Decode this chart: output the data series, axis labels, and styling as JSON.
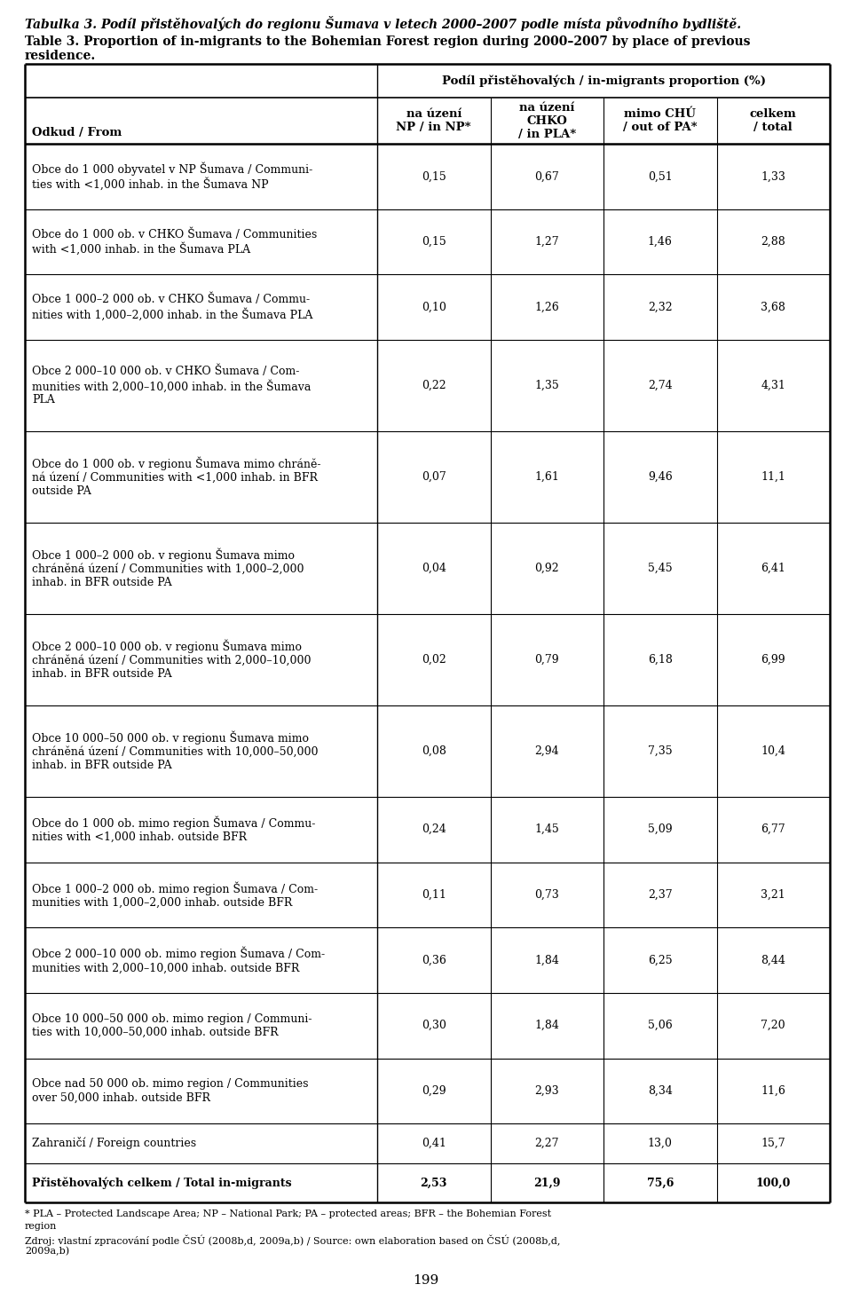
{
  "title_cz": "Tabulka 3. Podíl přistěhovalých do regionu Šumava v letech 2000–2007 podle místa původního bydliště.",
  "title_en": "Table 3. Proportion of in-migrants to the Bohemian Forest region during 2000–2007 by place of previous residence.",
  "col_header_left": "Odkud / From",
  "col_header_group": "Podíl přistěhovalých / in-migrants proportion (%)",
  "col_headers": [
    "na úzení\nNP / in NP*",
    "na úzení\nCHKO\n/ in PLA*",
    "mimo CHÚ\n/ out of PA*",
    "celkem\n/ total"
  ],
  "rows": [
    {
      "label": "Obce do 1 000 obyvatel v NP Šumava / Communi-\nties with <1,000 inhab. in the Šumava NP",
      "values": [
        "0,15",
        "0,67",
        "0,51",
        "1,33"
      ],
      "nlines": 2
    },
    {
      "label": "Obce do 1 000 ob. v CHKO Šumava / Communities\nwith <1,000 inhab. in the Šumava PLA",
      "values": [
        "0,15",
        "1,27",
        "1,46",
        "2,88"
      ],
      "nlines": 2
    },
    {
      "label": "Obce 1 000–2 000 ob. v CHKO Šumava / Commu-\nnities with 1,000–2,000 inhab. in the Šumava PLA",
      "values": [
        "0,10",
        "1,26",
        "2,32",
        "3,68"
      ],
      "nlines": 2
    },
    {
      "label": "Obce 2 000–10 000 ob. v CHKO Šumava / Com-\nmunities with 2,000–10,000 inhab. in the Šumava\nPLA",
      "values": [
        "0,22",
        "1,35",
        "2,74",
        "4,31"
      ],
      "nlines": 3
    },
    {
      "label": "Obce do 1 000 ob. v regionu Šumava mimo chráně-\nná úzení / Communities with <1,000 inhab. in BFR\noutside PA",
      "values": [
        "0,07",
        "1,61",
        "9,46",
        "11,1"
      ],
      "nlines": 3
    },
    {
      "label": "Obce 1 000–2 000 ob. v regionu Šumava mimo\nchráněná úzení / Communities with 1,000–2,000\ninhab. in BFR outside PA",
      "values": [
        "0,04",
        "0,92",
        "5,45",
        "6,41"
      ],
      "nlines": 3
    },
    {
      "label": "Obce 2 000–10 000 ob. v regionu Šumava mimo\nchráněná úzení / Communities with 2,000–10,000\ninhab. in BFR outside PA",
      "values": [
        "0,02",
        "0,79",
        "6,18",
        "6,99"
      ],
      "nlines": 3
    },
    {
      "label": "Obce 10 000–50 000 ob. v regionu Šumava mimo\nchráněná úzení / Communities with 10,000–50,000\ninhab. in BFR outside PA",
      "values": [
        "0,08",
        "2,94",
        "7,35",
        "10,4"
      ],
      "nlines": 3
    },
    {
      "label": "Obce do 1 000 ob. mimo region Šumava / Commu-\nnities with <1,000 inhab. outside BFR",
      "values": [
        "0,24",
        "1,45",
        "5,09",
        "6,77"
      ],
      "nlines": 2
    },
    {
      "label": "Obce 1 000–2 000 ob. mimo region Šumava / Com-\nmunities with 1,000–2,000 inhab. outside BFR",
      "values": [
        "0,11",
        "0,73",
        "2,37",
        "3,21"
      ],
      "nlines": 2
    },
    {
      "label": "Obce 2 000–10 000 ob. mimo region Šumava / Com-\nmunities with 2,000–10,000 inhab. outside BFR",
      "values": [
        "0,36",
        "1,84",
        "6,25",
        "8,44"
      ],
      "nlines": 2
    },
    {
      "label": "Obce 10 000–50 000 ob. mimo region / Communi-\nties with 10,000–50,000 inhab. outside BFR",
      "values": [
        "0,30",
        "1,84",
        "5,06",
        "7,20"
      ],
      "nlines": 2
    },
    {
      "label": "Obce nad 50 000 ob. mimo region / Communities\nover 50,000 inhab. outside BFR",
      "values": [
        "0,29",
        "2,93",
        "8,34",
        "11,6"
      ],
      "nlines": 2
    },
    {
      "label": "Zahraničí / Foreign countries",
      "values": [
        "0,41",
        "2,27",
        "13,0",
        "15,7"
      ],
      "nlines": 1
    },
    {
      "label": "Přistěhovalých celkem / Total in-migrants",
      "values": [
        "2,53",
        "21,9",
        "75,6",
        "100,0"
      ],
      "nlines": 1
    }
  ],
  "footnote_line1": "* PLA – Protected Landscape Area; NP – National Park; PA – protected areas; BFR – the Bohemian Forest",
  "footnote_line2": "region",
  "footnote_line3": "Zdroj: vlastní zpracování podle ČSÚ (2008b,d, 2009a,b) / Source: own elaboration based on ČSÚ (2008b,d,",
  "footnote_line4": "2009a,b)",
  "page_number": "199",
  "bg_color": "#ffffff",
  "text_color": "#000000"
}
